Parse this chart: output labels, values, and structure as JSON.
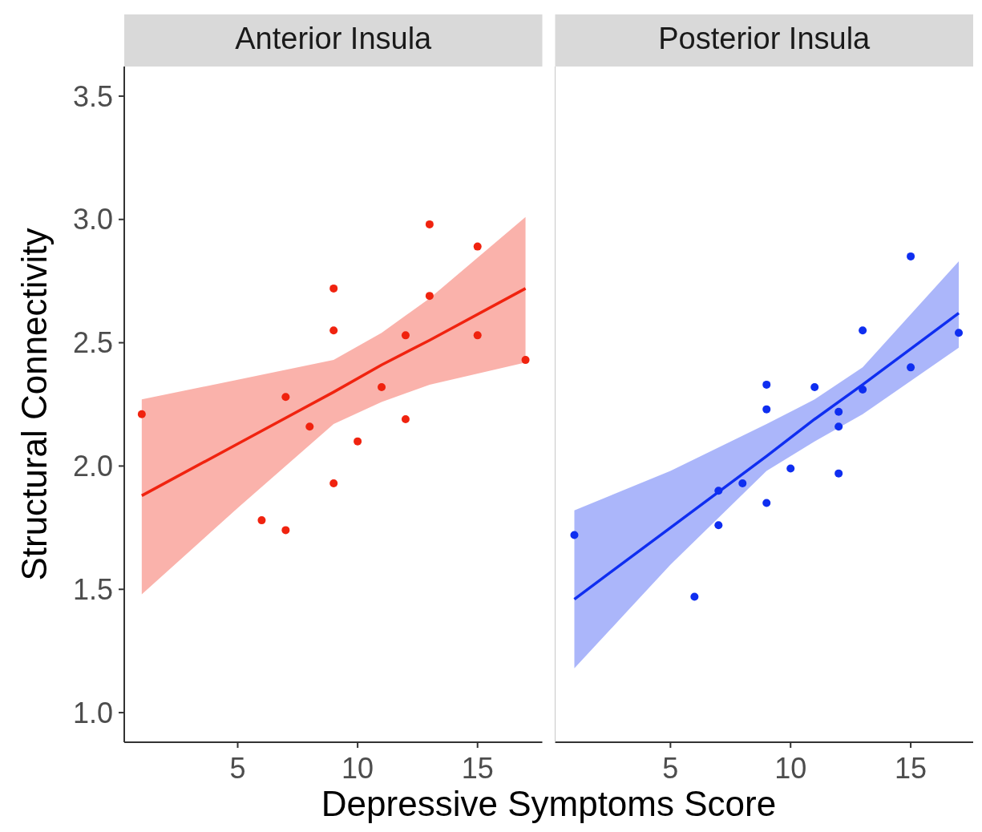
{
  "chart_data": [
    {
      "type": "scatter",
      "title": "Anterior Insula",
      "xlabel": "Depressive Symptoms Score",
      "ylabel": "Structural Connectivity",
      "xlim": [
        0.27,
        17.7
      ],
      "xticks": [
        5,
        10,
        15
      ],
      "ylim": [
        0.88,
        3.62
      ],
      "yticks": [
        {
          "value": 1,
          "label": "1.0"
        },
        1.5,
        {
          "value": 2,
          "label": "2.0"
        },
        2.5,
        {
          "value": 3,
          "label": "3.0"
        },
        3.5
      ],
      "grid": false,
      "series": [
        {
          "color": "#f0230f",
          "marker": "circle",
          "x": [
            1,
            6,
            7,
            7,
            8,
            9,
            9,
            9,
            10,
            11,
            12,
            12,
            13,
            13,
            15,
            15,
            17
          ],
          "values": [
            2.21,
            1.78,
            1.74,
            2.28,
            2.16,
            2.72,
            2.55,
            1.93,
            2.1,
            2.32,
            2.53,
            2.19,
            2.98,
            2.69,
            2.89,
            2.53,
            2.43
          ]
        },
        {
          "type": "line",
          "color": "#f0230f",
          "x": [
            1,
            5,
            9,
            11,
            13,
            17
          ],
          "values": [
            1.88,
            2.09,
            2.3,
            2.41,
            2.51,
            2.72
          ],
          "lower": [
            1.48,
            1.83,
            2.17,
            2.26,
            2.33,
            2.42
          ],
          "upper": [
            2.27,
            2.35,
            2.43,
            2.54,
            2.68,
            3.01
          ]
        }
      ]
    },
    {
      "type": "scatter",
      "title": "Posterior Insula",
      "xlim": [
        0.2,
        17.6
      ],
      "xticks": [
        5,
        10,
        15
      ],
      "ylim": [
        0.88,
        3.62
      ],
      "tick_labels": "x",
      "grid": false,
      "series": [
        {
          "color": "#0f2ef0",
          "marker": "circle",
          "x": [
            1,
            6,
            7,
            7,
            8,
            9,
            9,
            9,
            10,
            11,
            12,
            12,
            12,
            13,
            13,
            15,
            15,
            17
          ],
          "values": [
            1.72,
            1.47,
            1.9,
            1.76,
            1.93,
            2.33,
            2.23,
            1.85,
            1.99,
            2.32,
            2.22,
            2.16,
            1.97,
            2.55,
            2.31,
            2.85,
            2.4,
            2.54
          ]
        },
        {
          "type": "line",
          "color": "#0f2ef0",
          "x": [
            1,
            5,
            9,
            11,
            13,
            17
          ],
          "values": [
            1.46,
            1.75,
            2.04,
            2.19,
            2.33,
            2.62
          ],
          "lower": [
            1.18,
            1.6,
            1.98,
            2.1,
            2.21,
            2.48
          ],
          "upper": [
            1.82,
            1.98,
            2.17,
            2.27,
            2.4,
            2.83
          ]
        }
      ]
    }
  ]
}
